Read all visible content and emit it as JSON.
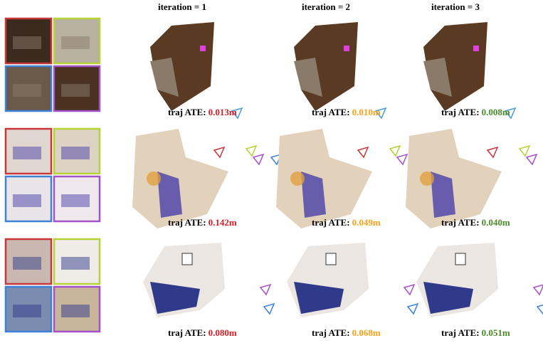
{
  "header": {
    "columns": [
      "iteration = 1",
      "iteration = 2",
      "iteration = 3"
    ]
  },
  "ate_label": "traj ATE:",
  "rows": [
    {
      "ate": [
        "0.013m",
        "0.010m",
        "0.008m"
      ]
    },
    {
      "ate": [
        "0.142m",
        "0.049m",
        "0.040m"
      ]
    },
    {
      "ate": [
        "0.080m",
        "0.068m",
        "0.051m"
      ]
    }
  ]
}
